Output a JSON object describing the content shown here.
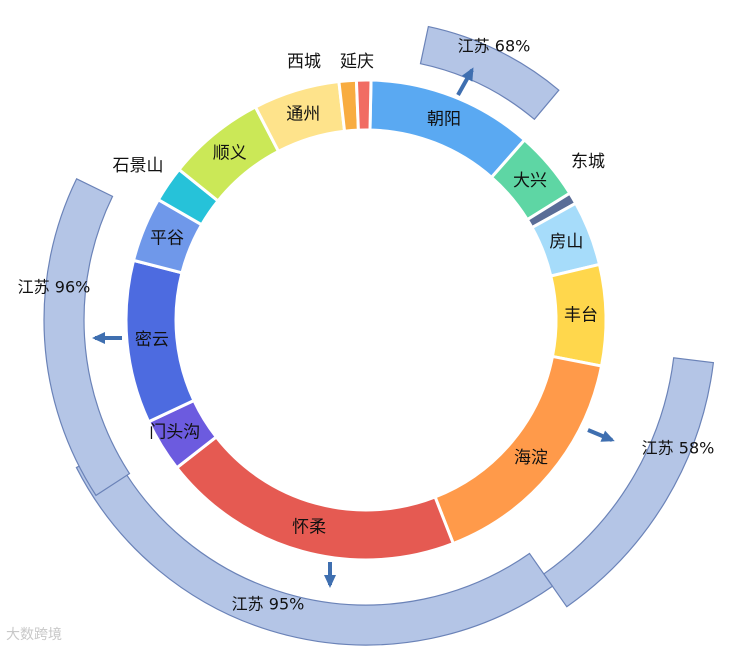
{
  "chart_data": {
    "type": "donut",
    "title": "",
    "categories": [
      "朝阳",
      "大兴",
      "东城",
      "房山",
      "丰台",
      "海淀",
      "怀柔",
      "门头沟",
      "密云",
      "平谷",
      "石景山",
      "顺义",
      "通州",
      "西城",
      "延庆"
    ],
    "values": [
      11.5,
      4.8,
      0.8,
      4.5,
      7.0,
      16.5,
      21.0,
      3.7,
      11.3,
      4.5,
      2.5,
      6.8,
      6.0,
      1.2,
      1.0
    ],
    "colors": [
      "#5aa9f2",
      "#5ed6a4",
      "#5a6d97",
      "#a6dcfa",
      "#ffd74c",
      "#ff9a4a",
      "#e55a52",
      "#6c5bdf",
      "#4d6be0",
      "#6f98ea",
      "#26c2d9",
      "#cbe857",
      "#fee38b",
      "#f8ac40",
      "#f16c63"
    ],
    "callouts": [
      {
        "label": "江苏 68%",
        "segment": "朝阳"
      },
      {
        "label": "江苏 58%",
        "segment": "海淀"
      },
      {
        "label": "江苏 95%",
        "segment": "怀柔"
      },
      {
        "label": "江苏 96%",
        "segment": "密云"
      }
    ]
  },
  "watermark": "大数跨境",
  "colors": {
    "callout_fill": "#b4c5e6",
    "callout_stroke": "#6b83b8",
    "arrow": "#3f6fb0"
  }
}
